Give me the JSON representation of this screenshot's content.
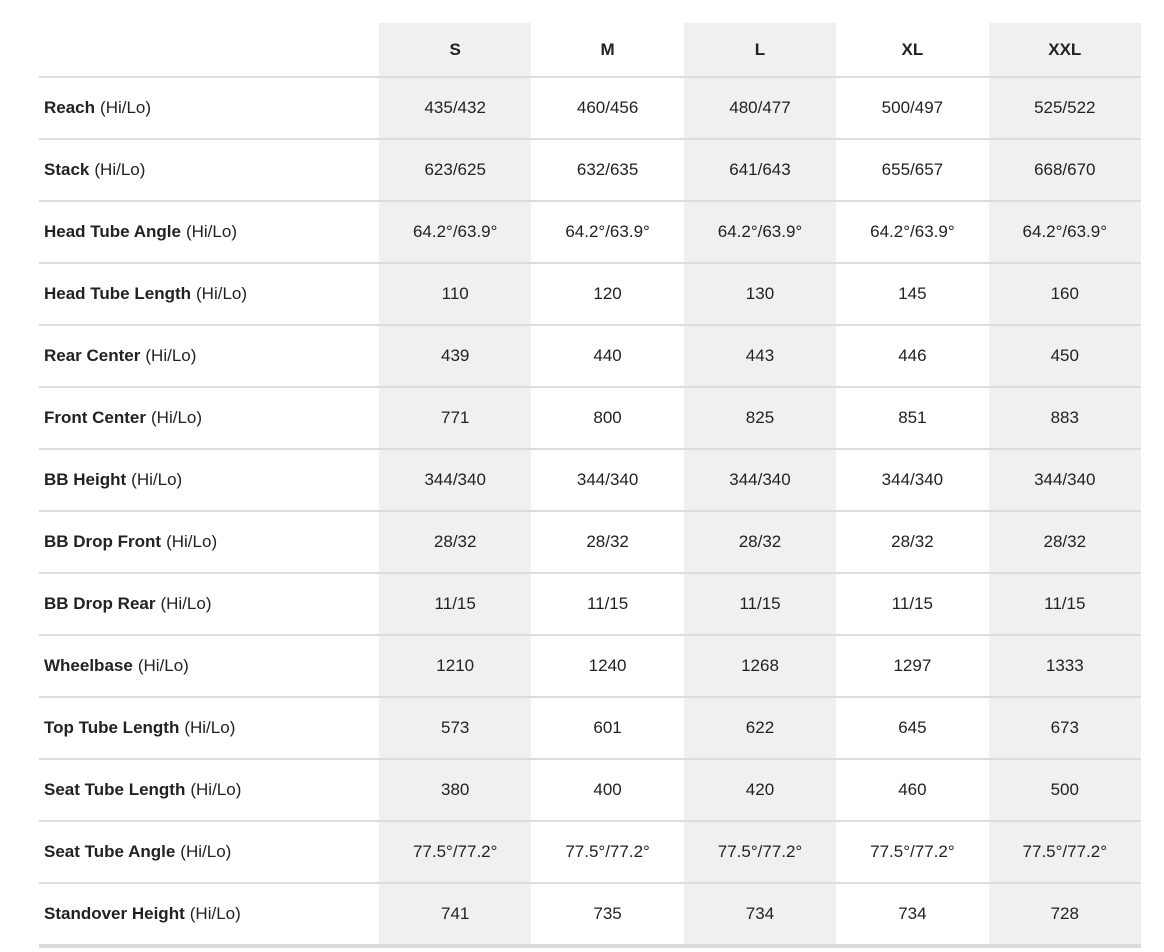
{
  "header": {
    "sizes": [
      "S",
      "M",
      "L",
      "XL",
      "XXL"
    ]
  },
  "rows": [
    {
      "name": "Reach",
      "note": "(Hi/Lo)",
      "values": [
        "435/432",
        "460/456",
        "480/477",
        "500/497",
        "525/522"
      ]
    },
    {
      "name": "Stack",
      "note": "(Hi/Lo)",
      "values": [
        "623/625",
        "632/635",
        "641/643",
        "655/657",
        "668/670"
      ]
    },
    {
      "name": "Head Tube Angle",
      "note": "(Hi/Lo)",
      "values": [
        "64.2°/63.9°",
        "64.2°/63.9°",
        "64.2°/63.9°",
        "64.2°/63.9°",
        "64.2°/63.9°"
      ]
    },
    {
      "name": "Head Tube Length",
      "note": "(Hi/Lo)",
      "values": [
        "110",
        "120",
        "130",
        "145",
        "160"
      ]
    },
    {
      "name": "Rear Center",
      "note": "(Hi/Lo)",
      "values": [
        "439",
        "440",
        "443",
        "446",
        "450"
      ]
    },
    {
      "name": "Front Center",
      "note": "(Hi/Lo)",
      "values": [
        "771",
        "800",
        "825",
        "851",
        "883"
      ]
    },
    {
      "name": "BB Height",
      "note": "(Hi/Lo)",
      "values": [
        "344/340",
        "344/340",
        "344/340",
        "344/340",
        "344/340"
      ]
    },
    {
      "name": "BB Drop Front",
      "note": "(Hi/Lo)",
      "values": [
        "28/32",
        "28/32",
        "28/32",
        "28/32",
        "28/32"
      ]
    },
    {
      "name": "BB Drop Rear",
      "note": "(Hi/Lo)",
      "values": [
        "11/15",
        "11/15",
        "11/15",
        "11/15",
        "11/15"
      ]
    },
    {
      "name": "Wheelbase",
      "note": "(Hi/Lo)",
      "values": [
        "1210",
        "1240",
        "1268",
        "1297",
        "1333"
      ]
    },
    {
      "name": "Top Tube Length",
      "note": "(Hi/Lo)",
      "values": [
        "573",
        "601",
        "622",
        "645",
        "673"
      ]
    },
    {
      "name": "Seat Tube Length",
      "note": "(Hi/Lo)",
      "values": [
        "380",
        "400",
        "420",
        "460",
        "500"
      ]
    },
    {
      "name": "Seat Tube Angle",
      "note": "(Hi/Lo)",
      "values": [
        "77.5°/77.2°",
        "77.5°/77.2°",
        "77.5°/77.2°",
        "77.5°/77.2°",
        "77.5°/77.2°"
      ]
    },
    {
      "name": "Standover Height",
      "note": "(Hi/Lo)",
      "values": [
        "741",
        "735",
        "734",
        "734",
        "728"
      ]
    }
  ]
}
